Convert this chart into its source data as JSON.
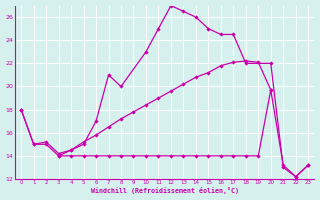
{
  "xlabel": "Windchill (Refroidissement éolien,°C)",
  "bg_color": "#d6f0ee",
  "line_color": "#cc00aa",
  "grid_color": "#ffffff",
  "xlim": [
    -0.5,
    23.5
  ],
  "ylim": [
    12,
    27
  ],
  "ytick_vals": [
    12,
    14,
    16,
    18,
    20,
    22,
    24,
    26
  ],
  "ytick_labels": [
    "12",
    "14",
    "16",
    "18",
    "20",
    "22",
    "24",
    "26"
  ],
  "xtick_labels": [
    "0",
    "1",
    "2",
    "3",
    "4",
    "5",
    "6",
    "7",
    "8",
    "9",
    "10",
    "11",
    "12",
    "13",
    "14",
    "15",
    "16",
    "17",
    "18",
    "19",
    "20",
    "21",
    "22",
    "23"
  ],
  "line_a_x": [
    0,
    1,
    2,
    3,
    4,
    5,
    6,
    7,
    8,
    10,
    11,
    12,
    13,
    14,
    15,
    16,
    17,
    18,
    20,
    21,
    22,
    23
  ],
  "line_a_y": [
    18,
    15,
    15,
    14,
    14.5,
    15,
    17,
    21,
    20,
    23,
    25,
    27,
    26.5,
    26,
    25,
    24.5,
    24.5,
    22,
    22,
    13,
    12.2,
    13.2
  ],
  "line_b_x": [
    0,
    1,
    2,
    3,
    4,
    5,
    6,
    7,
    8,
    9,
    10,
    11,
    12,
    13,
    14,
    15,
    16,
    17,
    18,
    19,
    20
  ],
  "line_b_y": [
    18,
    15,
    15.2,
    14.2,
    14.5,
    15.2,
    15.8,
    16.5,
    17.2,
    17.8,
    18.4,
    19,
    19.6,
    20.2,
    20.8,
    21.2,
    21.8,
    22.1,
    22.2,
    22.1,
    19.7
  ],
  "line_c_x": [
    3,
    4,
    5,
    6,
    7,
    8,
    9,
    10,
    11,
    12,
    13,
    14,
    15,
    16,
    17,
    18,
    19,
    20,
    21,
    22,
    23
  ],
  "line_c_y": [
    14,
    14,
    14,
    14,
    14,
    14,
    14,
    14,
    14,
    14,
    14,
    14,
    14,
    14,
    14,
    14,
    14,
    19.7,
    13.2,
    12.2,
    13.2
  ]
}
